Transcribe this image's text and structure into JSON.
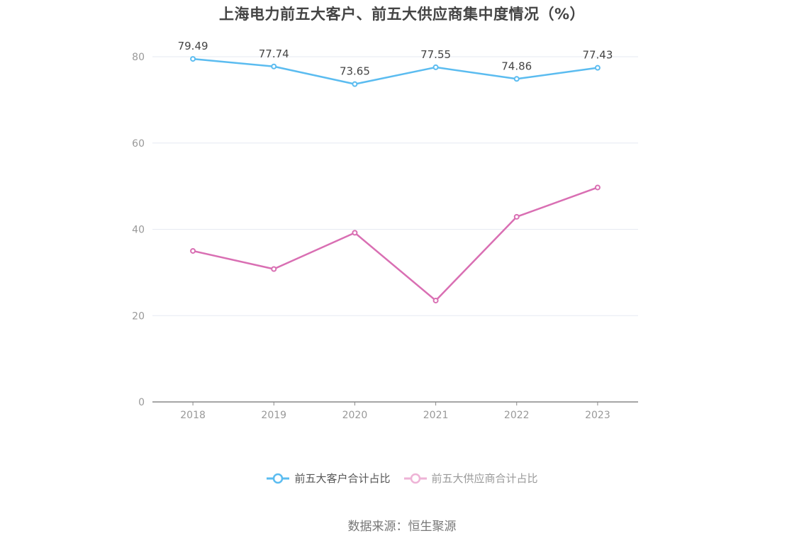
{
  "title": "上海电力前五大客户、前五大供应商集中度情况（%）",
  "legend": [
    {
      "label": "前五大客户合计占比",
      "color": "#5bbcf0"
    },
    {
      "label": "前五大供应商合计占比",
      "color": "#d96fb3"
    }
  ],
  "footer": "数据来源：恒生聚源",
  "y_ticks": [
    "0",
    "20",
    "40",
    "60",
    "80"
  ],
  "chart_data": {
    "type": "line",
    "title": "上海电力前五大客户、前五大供应商集中度情况（%）",
    "xlabel": "",
    "ylabel": "",
    "categories": [
      "2018",
      "2019",
      "2020",
      "2021",
      "2022",
      "2023"
    ],
    "ylim": [
      0,
      80
    ],
    "grid": true,
    "legend_position": "bottom",
    "series": [
      {
        "name": "前五大客户合计占比",
        "color": "#5bbcf0",
        "values": [
          79.49,
          77.74,
          73.65,
          77.55,
          74.86,
          77.43
        ],
        "labels": [
          "79.49",
          "77.74",
          "73.65",
          "77.55",
          "74.86",
          "77.43"
        ]
      },
      {
        "name": "前五大供应商合计占比",
        "color": "#d96fb3",
        "values": [
          35.0,
          30.8,
          39.2,
          23.5,
          42.9,
          49.7
        ]
      }
    ]
  }
}
